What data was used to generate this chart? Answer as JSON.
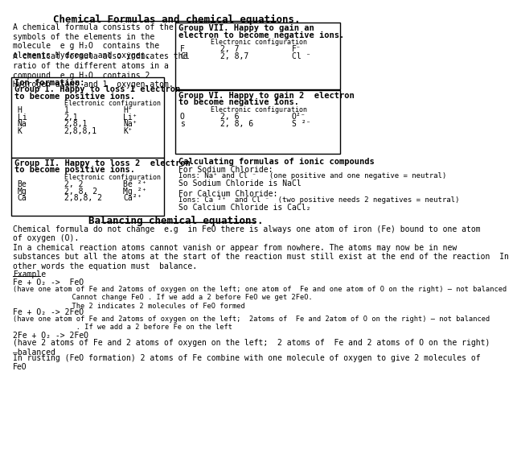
{
  "title": "Chemical Formulas and chemical equations.",
  "bg_color": "#ffffff",
  "text_color": "#000000",
  "sections": {
    "intro1": "A chemical formula consists of the\nsymbols of the elements in the\nmolecule  e g H₂O  contains the\nelements Hydrogen and oxygen.",
    "intro2": "A chemical formula also indicates the\nratio of the different atoms in a\ncompound  e g H₂O  contains 2\nHydrogen atoms and 1  oxygen atom.",
    "box1_data": [
      [
        "H",
        "1",
        "H⁺"
      ],
      [
        "Li",
        "2,1",
        "Li⁺"
      ],
      [
        "Na",
        "2,8,1",
        "Na⁺"
      ],
      [
        "K",
        "2,8,8,1",
        "K⁺"
      ]
    ],
    "box2_data": [
      [
        "Be",
        "2, 2",
        "Be ²⁺"
      ],
      [
        "Mg",
        "2, 8, 2",
        "Mg ²⁺"
      ],
      [
        "Ca",
        "2,8,8, 2",
        "Ca²⁺"
      ]
    ],
    "box3_data": [
      [
        "F",
        "2, 7",
        "F⁻"
      ],
      [
        "Cl",
        "2, 8,7",
        "Cl ⁻"
      ]
    ],
    "box4_data": [
      [
        "O",
        "2, 6",
        "O²⁻"
      ],
      [
        "s",
        "2, 8, 6",
        "S ²⁻"
      ]
    ],
    "calc_title": "Calculating formulas of ionic compounds",
    "balance_title": "Balancing chemical equations.",
    "balance_text": [
      "Chemical formula do not change  e.g  in FeO there is always one atom of iron (Fe) bound to one atom\nof oxygen (O).",
      "In a chemical reaction atoms cannot vanish or appear from nowhere. The atoms may now be in new\nsubstances but all the atoms at the start of the reaction must still exist at the end of the reaction  In\nother words the equation must  balance.",
      "Example",
      "Fe + O₂ ->  FeO",
      "(have one atom of Fe and 2atoms of oxygen on the left; one atom of  Fe and one atom of O on the right) – not balanced\n              Cannot change FeO . If we add a 2 before FeO we get 2FeO.\n              The 2 indicates 2 molecules of FeO formed",
      "Fe + O₂ -> 2FeO",
      "(have one atom of Fe and 2atoms of oxygen on the left;  2atoms of  Fe and 2atom of O on the right) – not balanced\n               . If we add a 2 before Fe on the left",
      "2Fe + O₂ -> 2FeO",
      "(have 2 atoms of Fe and 2 atoms of oxygen on the left;  2 atoms of  Fe and 2 atoms of O on the right)\n–balanced",
      "In rusting (FeO formation) 2 atoms of Fe combine with one molecule of oxygen to give 2 molecules of\nFeO"
    ]
  }
}
